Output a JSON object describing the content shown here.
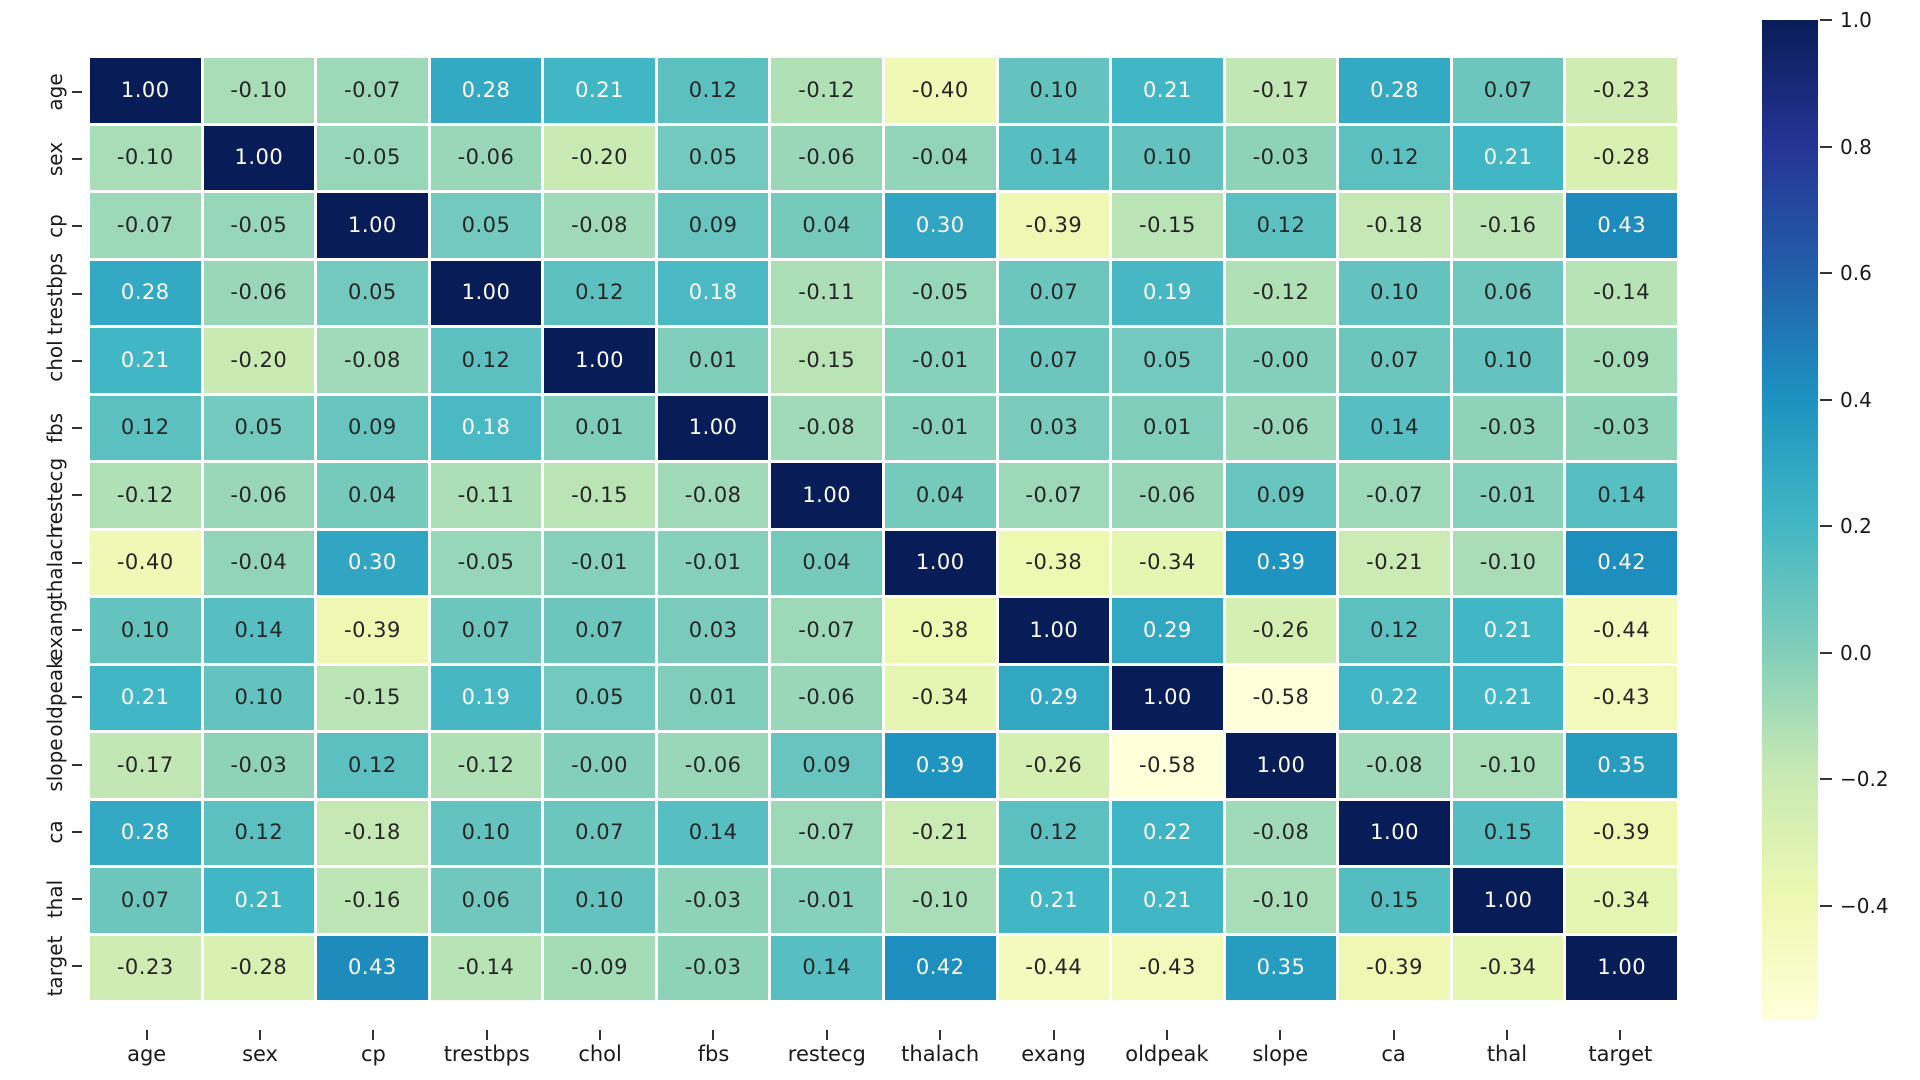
{
  "chart_data": {
    "type": "heatmap",
    "title": "",
    "xlabel": "",
    "ylabel": "",
    "x_categories": [
      "age",
      "sex",
      "cp",
      "trestbps",
      "chol",
      "fbs",
      "restecg",
      "thalach",
      "exang",
      "oldpeak",
      "slope",
      "ca",
      "thal",
      "target"
    ],
    "y_categories": [
      "age",
      "sex",
      "cp",
      "trestbps",
      "chol",
      "fbs",
      "restecg",
      "thalach",
      "exang",
      "oldpeak",
      "slope",
      "ca",
      "thal",
      "target"
    ],
    "matrix": [
      [
        "1.00",
        "-0.10",
        "-0.07",
        "0.28",
        "0.21",
        "0.12",
        "-0.12",
        "-0.40",
        "0.10",
        "0.21",
        "-0.17",
        "0.28",
        "0.07",
        "-0.23"
      ],
      [
        "-0.10",
        "1.00",
        "-0.05",
        "-0.06",
        "-0.20",
        "0.05",
        "-0.06",
        "-0.04",
        "0.14",
        "0.10",
        "-0.03",
        "0.12",
        "0.21",
        "-0.28"
      ],
      [
        "-0.07",
        "-0.05",
        "1.00",
        "0.05",
        "-0.08",
        "0.09",
        "0.04",
        "0.30",
        "-0.39",
        "-0.15",
        "0.12",
        "-0.18",
        "-0.16",
        "0.43"
      ],
      [
        "0.28",
        "-0.06",
        "0.05",
        "1.00",
        "0.12",
        "0.18",
        "-0.11",
        "-0.05",
        "0.07",
        "0.19",
        "-0.12",
        "0.10",
        "0.06",
        "-0.14"
      ],
      [
        "0.21",
        "-0.20",
        "-0.08",
        "0.12",
        "1.00",
        "0.01",
        "-0.15",
        "-0.01",
        "0.07",
        "0.05",
        "-0.00",
        "0.07",
        "0.10",
        "-0.09"
      ],
      [
        "0.12",
        "0.05",
        "0.09",
        "0.18",
        "0.01",
        "1.00",
        "-0.08",
        "-0.01",
        "0.03",
        "0.01",
        "-0.06",
        "0.14",
        "-0.03",
        "-0.03"
      ],
      [
        "-0.12",
        "-0.06",
        "0.04",
        "-0.11",
        "-0.15",
        "-0.08",
        "1.00",
        "0.04",
        "-0.07",
        "-0.06",
        "0.09",
        "-0.07",
        "-0.01",
        "0.14"
      ],
      [
        "-0.40",
        "-0.04",
        "0.30",
        "-0.05",
        "-0.01",
        "-0.01",
        "0.04",
        "1.00",
        "-0.38",
        "-0.34",
        "0.39",
        "-0.21",
        "-0.10",
        "0.42"
      ],
      [
        "0.10",
        "0.14",
        "-0.39",
        "0.07",
        "0.07",
        "0.03",
        "-0.07",
        "-0.38",
        "1.00",
        "0.29",
        "-0.26",
        "0.12",
        "0.21",
        "-0.44"
      ],
      [
        "0.21",
        "0.10",
        "-0.15",
        "0.19",
        "0.05",
        "0.01",
        "-0.06",
        "-0.34",
        "0.29",
        "1.00",
        "-0.58",
        "0.22",
        "0.21",
        "-0.43"
      ],
      [
        "-0.17",
        "-0.03",
        "0.12",
        "-0.12",
        "-0.00",
        "-0.06",
        "0.09",
        "0.39",
        "-0.26",
        "-0.58",
        "1.00",
        "-0.08",
        "-0.10",
        "0.35"
      ],
      [
        "0.28",
        "0.12",
        "-0.18",
        "0.10",
        "0.07",
        "0.14",
        "-0.07",
        "-0.21",
        "0.12",
        "0.22",
        "-0.08",
        "1.00",
        "0.15",
        "-0.39"
      ],
      [
        "0.07",
        "0.21",
        "-0.16",
        "0.06",
        "0.10",
        "-0.03",
        "-0.01",
        "-0.10",
        "0.21",
        "0.21",
        "-0.10",
        "0.15",
        "1.00",
        "-0.34"
      ],
      [
        "-0.23",
        "-0.28",
        "0.43",
        "-0.14",
        "-0.09",
        "-0.03",
        "0.14",
        "0.42",
        "-0.44",
        "-0.43",
        "0.35",
        "-0.39",
        "-0.34",
        "1.00"
      ]
    ],
    "colormap": {
      "name": "YlGnBu",
      "stops": [
        "#ffffd9",
        "#edf8b1",
        "#c7e9b4",
        "#7fcdbb",
        "#41b6c4",
        "#1d91c0",
        "#225ea8",
        "#253494",
        "#081d58"
      ]
    },
    "colorbar": {
      "range_bottom": -0.58,
      "range_top": 1.0,
      "tick_values": [
        1.0,
        0.8,
        0.6,
        0.4,
        0.2,
        0.0,
        -0.2,
        -0.4
      ],
      "tick_labels": [
        "1.0",
        "0.8",
        "0.6",
        "0.4",
        "0.2",
        "0.0",
        "−0.2",
        "−0.4"
      ],
      "position": "right"
    },
    "annotation_dark_text_color": "#262626",
    "annotation_light_text_color": "#ffffff",
    "grid_line_color": "#ffffff",
    "legend": "none"
  }
}
